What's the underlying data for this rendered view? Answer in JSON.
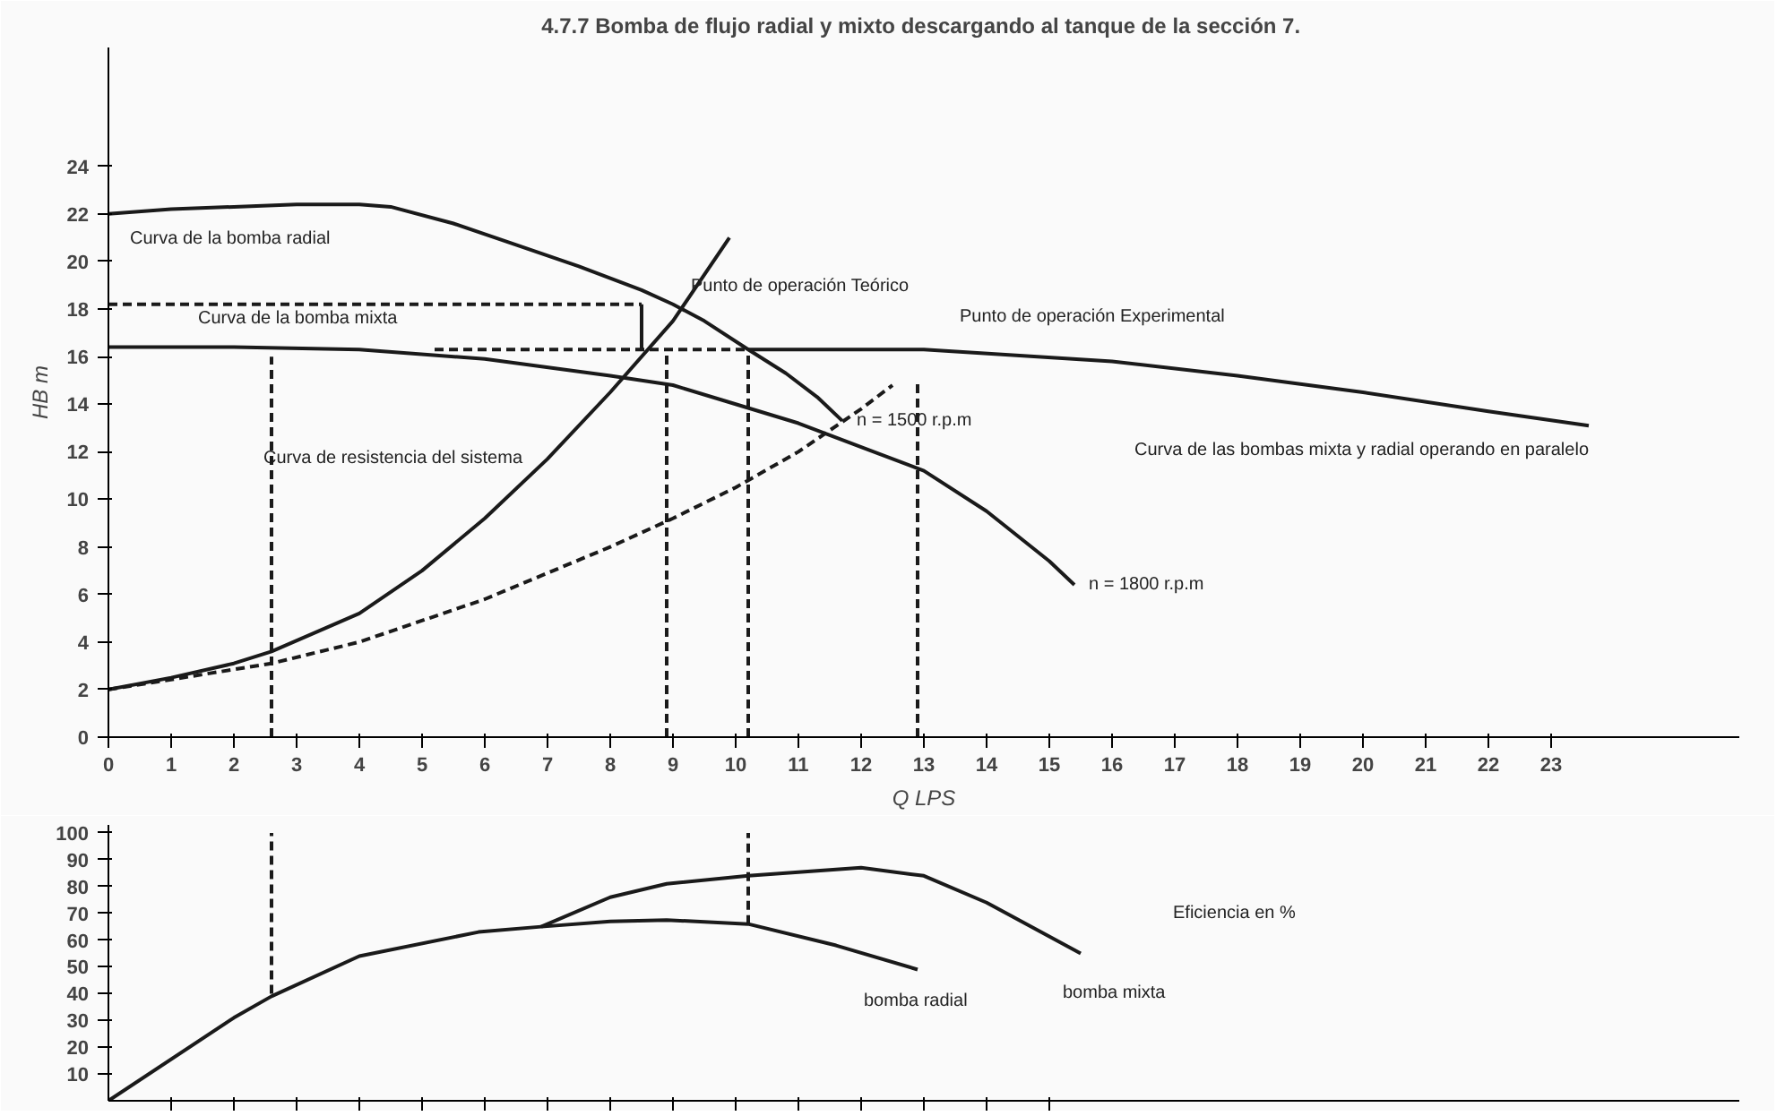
{
  "chart_data": [
    {
      "type": "line",
      "title": "4.7.7  Bomba de flujo radial y mixto descargando al tanque de la sección 7.",
      "xlabel": "Q LPS",
      "ylabel": "HB m",
      "xlim": [
        0,
        26
      ],
      "ylim": [
        0,
        29
      ],
      "xticks": [
        0,
        1,
        2,
        3,
        4,
        5,
        6,
        7,
        8,
        9,
        10,
        11,
        12,
        13,
        14,
        15,
        16,
        17,
        18,
        19,
        20,
        21,
        22,
        23
      ],
      "yticks": [
        0,
        2,
        4,
        6,
        8,
        10,
        12,
        14,
        16,
        18,
        20,
        22,
        24
      ],
      "marker": "none",
      "series": [
        {
          "name": "Curva de la bomba radial",
          "color": "#1a1a1a",
          "line_style": "solid",
          "x": [
            0,
            1,
            2,
            3,
            4,
            4.5,
            5.5,
            6.5,
            7.5,
            8.5,
            9,
            9.5,
            10.2,
            10.8,
            11.3,
            11.7
          ],
          "values": [
            22,
            22.2,
            22.3,
            22.4,
            22.4,
            22.3,
            21.6,
            20.7,
            19.8,
            18.8,
            18.2,
            17.5,
            16.3,
            15.3,
            14.3,
            13.3
          ]
        },
        {
          "name": "Curva de la bomba mixta",
          "color": "#1a1a1a",
          "line_style": "solid",
          "x": [
            0,
            2,
            4,
            6,
            8,
            9,
            10,
            11,
            12,
            13,
            14,
            15,
            15.4
          ],
          "values": [
            16.4,
            16.4,
            16.3,
            15.9,
            15.2,
            14.8,
            14,
            13.2,
            12.2,
            11.2,
            9.5,
            7.4,
            6.4
          ]
        },
        {
          "name": "Curva de las bombas mixta y radial operando en paralelo",
          "color": "#1a1a1a",
          "line_style": "solid",
          "x": [
            10.2,
            13,
            16,
            18,
            20,
            22,
            23.6
          ],
          "values": [
            16.3,
            16.3,
            15.8,
            15.2,
            14.5,
            13.7,
            13.1
          ]
        },
        {
          "name": "Curva de resistencia del sistema",
          "color": "#1a1a1a",
          "line_style": "solid",
          "x": [
            0,
            1,
            2,
            2.6,
            4,
            5,
            6,
            7,
            8,
            9,
            9.9
          ],
          "values": [
            2,
            2.5,
            3.1,
            3.6,
            5.2,
            7,
            9.2,
            11.7,
            14.5,
            17.5,
            21
          ]
        },
        {
          "color": "#1a1a1a",
          "line_style": "dashed",
          "x": [
            0,
            2.6,
            4,
            6,
            8,
            9,
            10,
            11,
            12,
            12.5
          ],
          "values": [
            2,
            3.1,
            4,
            5.8,
            8,
            9.2,
            10.5,
            12,
            13.8,
            14.8
          ]
        },
        {
          "color": "#1a1a1a",
          "line_style": "dashed",
          "x": [
            0,
            8.5
          ],
          "values": [
            18.2,
            18.2
          ]
        },
        {
          "color": "#1a1a1a",
          "line_style": "solid",
          "x": [
            8.5,
            8.5
          ],
          "values": [
            18.2,
            16.3
          ]
        },
        {
          "color": "#1a1a1a",
          "line_style": "dashed",
          "x": [
            5.2,
            10.2
          ],
          "values": [
            16.3,
            16.3
          ]
        },
        {
          "color": "#1a1a1a",
          "line_style": "dashed",
          "x": [
            2.6,
            2.6
          ],
          "values": [
            0,
            16
          ]
        },
        {
          "color": "#1a1a1a",
          "line_style": "dashed",
          "x": [
            8.9,
            8.9
          ],
          "values": [
            0,
            16.3
          ]
        },
        {
          "color": "#1a1a1a",
          "line_style": "dashed",
          "x": [
            10.2,
            10.2
          ],
          "values": [
            0,
            16.3
          ]
        },
        {
          "color": "#1a1a1a",
          "line_style": "dashed",
          "x": [
            12.9,
            12.9
          ],
          "values": [
            0,
            15
          ]
        }
      ],
      "annotations": [
        {
          "text": "Punto de operación Teórico",
          "x": 9,
          "y": 18.2
        },
        {
          "text": "Punto de operación Experimental",
          "x": 13,
          "y": 16.3
        },
        {
          "text": "n = 1500 r.p.m",
          "x": 11.7,
          "y": 13.3
        },
        {
          "text": "n = 1800 r.p.m",
          "x": 15.4,
          "y": 6.4
        }
      ]
    },
    {
      "type": "line",
      "xlim": [
        0,
        26
      ],
      "ylim": [
        0,
        103
      ],
      "xticks": [
        {
          "value": 1,
          "label": null
        },
        {
          "value": 2,
          "label": null
        },
        {
          "value": 3,
          "label": null
        },
        {
          "value": 4,
          "label": null
        },
        {
          "value": 5,
          "label": null
        },
        {
          "value": 6,
          "label": null
        },
        {
          "value": 7,
          "label": null
        },
        {
          "value": 8,
          "label": null
        },
        {
          "value": 9,
          "label": null
        },
        {
          "value": 10,
          "label": null
        },
        {
          "value": 11,
          "label": null
        },
        {
          "value": 12,
          "label": null
        },
        {
          "value": 13,
          "label": null
        },
        {
          "value": 14,
          "label": null
        },
        {
          "value": 15,
          "label": null
        }
      ],
      "yticks": [
        10,
        20,
        30,
        40,
        50,
        60,
        70,
        80,
        90,
        100
      ],
      "tick_labels": "y",
      "marker": "none",
      "series": [
        {
          "name": "bomba radial",
          "color": "#1a1a1a",
          "line_style": "solid",
          "x": [
            0,
            2,
            2.6,
            4,
            5.9,
            6.9,
            8,
            8.9,
            10.2,
            11.6,
            12.9
          ],
          "values": [
            0,
            31,
            39,
            54,
            63,
            65,
            67,
            67.5,
            66,
            58,
            49
          ]
        },
        {
          "name": "bomba mixta",
          "color": "#1a1a1a",
          "line_style": "solid",
          "x": [
            6.9,
            8,
            8.9,
            10.2,
            12,
            13,
            14,
            15.5
          ],
          "values": [
            65,
            76,
            81,
            84,
            87,
            84,
            74,
            55
          ]
        },
        {
          "color": "#1a1a1a",
          "line_style": "dashed",
          "x": [
            2.6,
            2.6
          ],
          "values": [
            40,
            100
          ]
        },
        {
          "color": "#1a1a1a",
          "line_style": "dashed",
          "x": [
            10.2,
            10.2
          ],
          "values": [
            66,
            100
          ]
        }
      ],
      "annotations": [
        "Eficiencia en %"
      ]
    }
  ]
}
